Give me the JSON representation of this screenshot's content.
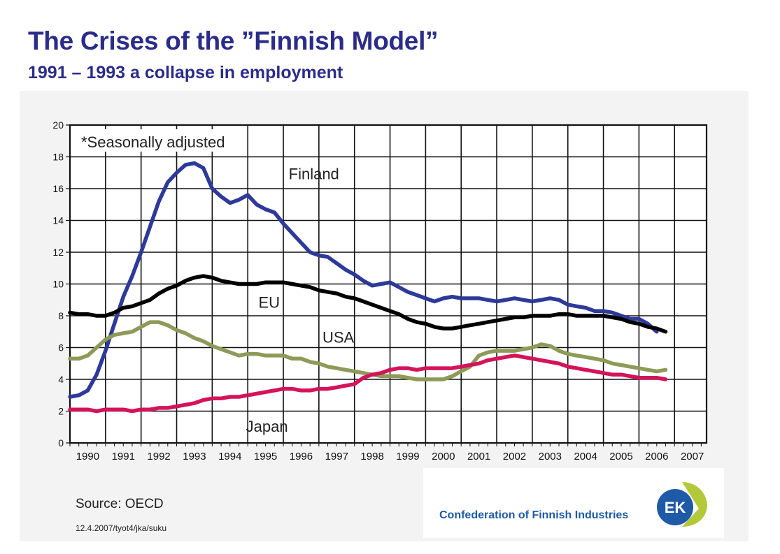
{
  "header": {
    "title": "The Crises of the ”Finnish Model”",
    "subtitle": "1991 – 1993 a collapse in employment"
  },
  "footer": {
    "source": "Source: OECD",
    "footnote": "12.4.2007/tyot4/jka/suku"
  },
  "logo": {
    "text": "Confederation of Finnish Industries",
    "mark_text": "EK",
    "colors": {
      "text": "#1f5aa6",
      "mark_blue": "#1f5aa6",
      "mark_green": "#b3c93a"
    }
  },
  "chart_data": {
    "type": "line",
    "annotation": "*Seasonally adjusted",
    "ylim": [
      0,
      20
    ],
    "yticks": [
      0,
      2,
      4,
      6,
      8,
      10,
      12,
      14,
      16,
      18,
      20
    ],
    "xlim": [
      1990,
      2007.9
    ],
    "xticks": [
      "1990",
      "1991",
      "1992",
      "1993",
      "1994",
      "1995",
      "1996",
      "1997",
      "1998",
      "1999",
      "2000",
      "2001",
      "2002",
      "2003",
      "2004",
      "2005",
      "2006",
      "2007"
    ],
    "grid": true,
    "series": [
      {
        "name": "Finland",
        "color": "#2d3a9a",
        "x": [
          1990.0,
          1990.25,
          1990.5,
          1990.75,
          1991.0,
          1991.25,
          1991.5,
          1991.75,
          1992.0,
          1992.25,
          1992.5,
          1992.75,
          1993.0,
          1993.25,
          1993.5,
          1993.75,
          1994.0,
          1994.25,
          1994.5,
          1994.75,
          1995.0,
          1995.25,
          1995.5,
          1995.75,
          1996.0,
          1996.25,
          1996.5,
          1996.75,
          1997.0,
          1997.25,
          1997.5,
          1997.75,
          1998.0,
          1998.25,
          1998.5,
          1998.75,
          1999.0,
          1999.25,
          1999.5,
          1999.75,
          2000.0,
          2000.25,
          2000.5,
          2000.75,
          2001.0,
          2001.25,
          2001.5,
          2001.75,
          2002.0,
          2002.25,
          2002.5,
          2002.75,
          2003.0,
          2003.25,
          2003.5,
          2003.75,
          2004.0,
          2004.25,
          2004.5,
          2004.75,
          2005.0,
          2005.25,
          2005.5,
          2005.75,
          2006.0,
          2006.25,
          2006.5
        ],
        "values": [
          2.9,
          3.0,
          3.3,
          4.3,
          5.8,
          7.5,
          9.2,
          10.5,
          12.0,
          13.6,
          15.2,
          16.4,
          17.0,
          17.5,
          17.6,
          17.3,
          16.0,
          15.5,
          15.1,
          15.3,
          15.6,
          15.0,
          14.7,
          14.5,
          13.8,
          13.2,
          12.6,
          12.0,
          11.8,
          11.7,
          11.3,
          10.9,
          10.6,
          10.2,
          9.9,
          10.0,
          10.1,
          9.8,
          9.5,
          9.3,
          9.1,
          8.9,
          9.1,
          9.2,
          9.1,
          9.1,
          9.1,
          9.0,
          8.9,
          9.0,
          9.1,
          9.0,
          8.9,
          9.0,
          9.1,
          9.0,
          8.7,
          8.6,
          8.5,
          8.3,
          8.3,
          8.2,
          8.0,
          7.8,
          7.8,
          7.5,
          7.0
        ]
      },
      {
        "name": "EU",
        "color": "#000000",
        "x": [
          1990.0,
          1990.25,
          1990.5,
          1990.75,
          1991.0,
          1991.25,
          1991.5,
          1991.75,
          1992.0,
          1992.25,
          1992.5,
          1992.75,
          1993.0,
          1993.25,
          1993.5,
          1993.75,
          1994.0,
          1994.25,
          1994.5,
          1994.75,
          1995.0,
          1995.25,
          1995.5,
          1995.75,
          1996.0,
          1996.25,
          1996.5,
          1996.75,
          1997.0,
          1997.25,
          1997.5,
          1997.75,
          1998.0,
          1998.25,
          1998.5,
          1998.75,
          1999.0,
          1999.25,
          1999.5,
          1999.75,
          2000.0,
          2000.25,
          2000.5,
          2000.75,
          2001.0,
          2001.25,
          2001.5,
          2001.75,
          2002.0,
          2002.25,
          2002.5,
          2002.75,
          2003.0,
          2003.25,
          2003.5,
          2003.75,
          2004.0,
          2004.25,
          2004.5,
          2004.75,
          2005.0,
          2005.25,
          2005.5,
          2005.75,
          2006.0,
          2006.25,
          2006.5,
          2006.75
        ],
        "values": [
          8.2,
          8.1,
          8.1,
          8.0,
          8.0,
          8.2,
          8.5,
          8.6,
          8.8,
          9.0,
          9.4,
          9.7,
          9.9,
          10.2,
          10.4,
          10.5,
          10.4,
          10.2,
          10.1,
          10.0,
          10.0,
          10.0,
          10.1,
          10.1,
          10.1,
          10.0,
          9.9,
          9.8,
          9.6,
          9.5,
          9.4,
          9.2,
          9.1,
          8.9,
          8.7,
          8.5,
          8.3,
          8.1,
          7.8,
          7.6,
          7.5,
          7.3,
          7.2,
          7.2,
          7.3,
          7.4,
          7.5,
          7.6,
          7.7,
          7.8,
          7.9,
          7.9,
          8.0,
          8.0,
          8.0,
          8.1,
          8.1,
          8.0,
          8.0,
          8.0,
          8.0,
          7.9,
          7.8,
          7.6,
          7.5,
          7.3,
          7.2,
          7.0
        ]
      },
      {
        "name": "USA",
        "color": "#8e9a58",
        "x": [
          1990.0,
          1990.25,
          1990.5,
          1990.75,
          1991.0,
          1991.25,
          1991.5,
          1991.75,
          1992.0,
          1992.25,
          1992.5,
          1992.75,
          1993.0,
          1993.25,
          1993.5,
          1993.75,
          1994.0,
          1994.25,
          1994.5,
          1994.75,
          1995.0,
          1995.25,
          1995.5,
          1995.75,
          1996.0,
          1996.25,
          1996.5,
          1996.75,
          1997.0,
          1997.25,
          1997.5,
          1997.75,
          1998.0,
          1998.25,
          1998.5,
          1998.75,
          1999.0,
          1999.25,
          1999.5,
          1999.75,
          2000.0,
          2000.25,
          2000.5,
          2000.75,
          2001.0,
          2001.25,
          2001.5,
          2001.75,
          2002.0,
          2002.25,
          2002.5,
          2002.75,
          2003.0,
          2003.25,
          2003.5,
          2003.75,
          2004.0,
          2004.25,
          2004.5,
          2004.75,
          2005.0,
          2005.25,
          2005.5,
          2005.75,
          2006.0,
          2006.25,
          2006.5,
          2006.75
        ],
        "values": [
          5.3,
          5.3,
          5.5,
          6.0,
          6.5,
          6.8,
          6.9,
          7.0,
          7.3,
          7.6,
          7.6,
          7.4,
          7.1,
          6.9,
          6.6,
          6.4,
          6.1,
          5.9,
          5.7,
          5.5,
          5.6,
          5.6,
          5.5,
          5.5,
          5.5,
          5.3,
          5.3,
          5.1,
          5.0,
          4.8,
          4.7,
          4.6,
          4.5,
          4.4,
          4.3,
          4.2,
          4.2,
          4.2,
          4.1,
          4.0,
          4.0,
          4.0,
          4.0,
          4.2,
          4.5,
          4.8,
          5.5,
          5.7,
          5.8,
          5.8,
          5.8,
          5.9,
          6.0,
          6.2,
          6.1,
          5.8,
          5.6,
          5.5,
          5.4,
          5.3,
          5.2,
          5.0,
          4.9,
          4.8,
          4.7,
          4.6,
          4.5,
          4.6
        ]
      },
      {
        "name": "Japan",
        "color": "#d4145a",
        "x": [
          1990.0,
          1990.25,
          1990.5,
          1990.75,
          1991.0,
          1991.25,
          1991.5,
          1991.75,
          1992.0,
          1992.25,
          1992.5,
          1992.75,
          1993.0,
          1993.25,
          1993.5,
          1993.75,
          1994.0,
          1994.25,
          1994.5,
          1994.75,
          1995.0,
          1995.25,
          1995.5,
          1995.75,
          1996.0,
          1996.25,
          1996.5,
          1996.75,
          1997.0,
          1997.25,
          1997.5,
          1997.75,
          1998.0,
          1998.25,
          1998.5,
          1998.75,
          1999.0,
          1999.25,
          1999.5,
          1999.75,
          2000.0,
          2000.25,
          2000.5,
          2000.75,
          2001.0,
          2001.25,
          2001.5,
          2001.75,
          2002.0,
          2002.25,
          2002.5,
          2002.75,
          2003.0,
          2003.25,
          2003.5,
          2003.75,
          2004.0,
          2004.25,
          2004.5,
          2004.75,
          2005.0,
          2005.25,
          2005.5,
          2005.75,
          2006.0,
          2006.25,
          2006.5,
          2006.75
        ],
        "values": [
          2.1,
          2.1,
          2.1,
          2.0,
          2.1,
          2.1,
          2.1,
          2.0,
          2.1,
          2.1,
          2.2,
          2.2,
          2.3,
          2.4,
          2.5,
          2.7,
          2.8,
          2.8,
          2.9,
          2.9,
          3.0,
          3.1,
          3.2,
          3.3,
          3.4,
          3.4,
          3.3,
          3.3,
          3.4,
          3.4,
          3.5,
          3.6,
          3.7,
          4.1,
          4.3,
          4.4,
          4.6,
          4.7,
          4.7,
          4.6,
          4.7,
          4.7,
          4.7,
          4.7,
          4.8,
          4.9,
          5.0,
          5.2,
          5.3,
          5.4,
          5.5,
          5.4,
          5.3,
          5.2,
          5.1,
          5.0,
          4.8,
          4.7,
          4.6,
          4.5,
          4.4,
          4.3,
          4.3,
          4.2,
          4.1,
          4.1,
          4.1,
          4.0
        ]
      }
    ]
  }
}
